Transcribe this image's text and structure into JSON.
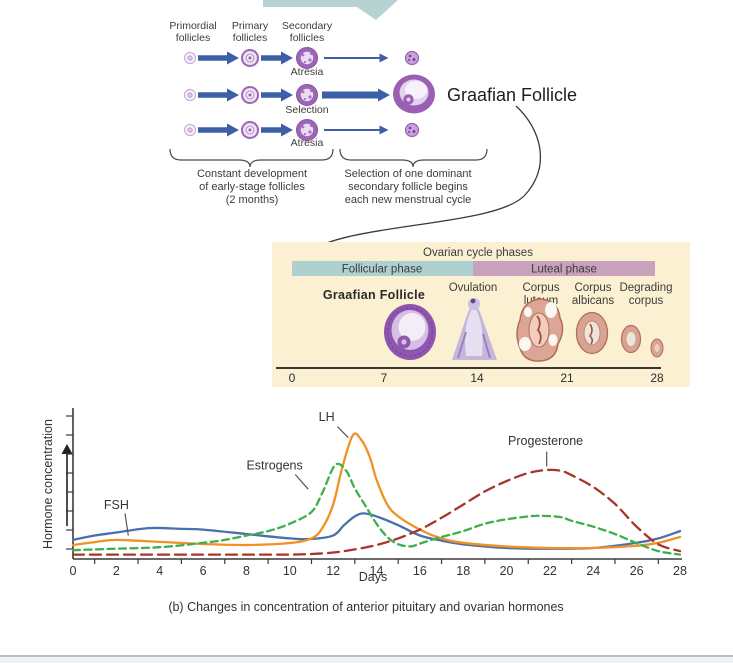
{
  "figure": {
    "graafian_label": "Graafian Follicle",
    "caption": "(b) Changes in concentration of anterior pituitary and ovarian hormones"
  },
  "diagram": {
    "columns": [
      [
        "Primordial",
        "follicles"
      ],
      [
        "Primary",
        "follicles"
      ],
      [
        "Secondary",
        "follicles"
      ]
    ],
    "row_labels": [
      "Atresia",
      "Selection",
      "Atresia"
    ],
    "left_caption": [
      "Constant development",
      "of early-stage follicles",
      "(2 months)"
    ],
    "right_caption": [
      "Selection of one dominant",
      "secondary follicle begins",
      "each new menstrual cycle"
    ],
    "arrow_color": "#3d5fa5",
    "top_flow_arrow_color": "#b6d2d2"
  },
  "cycle_box": {
    "title": "Ovarian cycle phases",
    "phases": [
      {
        "label": "Follicular phase",
        "color": "#aed0d1"
      },
      {
        "label": "Luteal phase",
        "color": "#c8a2bc"
      }
    ],
    "stages": {
      "graafian": "Graafian Follicle",
      "ovulation": "Ovulation",
      "corpus_luteum": [
        "Corpus",
        "luteum"
      ],
      "corpus_albicans": [
        "Corpus",
        "albicans"
      ],
      "degrading_corpus": [
        "Degrading",
        "corpus"
      ]
    },
    "timeline_days": [
      "0",
      "7",
      "14",
      "21",
      "28"
    ],
    "box_color": "#fbf0d2"
  },
  "chart_data": {
    "type": "line",
    "title": "",
    "xlabel": "Days",
    "ylabel": "Hormone concentration",
    "x_range": [
      0,
      28
    ],
    "ylim": [
      0,
      100
    ],
    "x_ticks": [
      0,
      2,
      4,
      6,
      8,
      10,
      12,
      14,
      16,
      18,
      20,
      22,
      24,
      26,
      28
    ],
    "y_axis_note": "unlabeled relative-concentration ticks",
    "legend_position": "inline-annotations",
    "grid": false,
    "series": [
      {
        "name": "FSH",
        "color": "#4a6fae",
        "style": "solid",
        "x": [
          0,
          1,
          2,
          3.5,
          5,
          6,
          8,
          10,
          11,
          12,
          12.5,
          13,
          13.4,
          14,
          15,
          16,
          17,
          18,
          20,
          22,
          24,
          26,
          27,
          28
        ],
        "y": [
          13,
          16,
          18,
          21,
          20.5,
          20,
          17,
          14,
          13.6,
          16,
          23,
          29,
          31,
          29,
          23,
          16,
          12.5,
          10,
          7.5,
          7,
          7.5,
          11,
          14,
          19
        ]
      },
      {
        "name": "LH",
        "color": "#f19123",
        "style": "solid",
        "x": [
          0,
          1,
          2,
          4,
          6,
          8,
          10,
          11,
          11.5,
          12,
          12.4,
          12.9,
          13.3,
          13.7,
          14,
          14.5,
          15,
          16,
          17,
          18,
          20,
          22,
          24,
          26,
          27,
          28
        ],
        "y": [
          9.5,
          11.5,
          13,
          11.6,
          10.2,
          9.5,
          10.9,
          14,
          21,
          37,
          61,
          84,
          81,
          69,
          54,
          37,
          29,
          20,
          14,
          11,
          8.5,
          7.5,
          7.5,
          9,
          11,
          15
        ]
      },
      {
        "name": "Estrogens",
        "color": "#3fae4c",
        "style": "dashed",
        "x": [
          0,
          2,
          4,
          6,
          7,
          8,
          9,
          10,
          11,
          11.5,
          12.1,
          12.6,
          13,
          13.5,
          14,
          14.5,
          15,
          15.6,
          16,
          17,
          18,
          19,
          20,
          21,
          21.6,
          22.5,
          23,
          24,
          25,
          26,
          27,
          28
        ],
        "y": [
          6,
          7,
          8,
          11,
          13,
          16,
          19,
          24,
          32,
          45,
          64,
          60,
          48,
          36,
          24,
          15,
          10,
          8.6,
          10.5,
          15,
          19,
          24,
          27,
          29,
          29.4,
          28.5,
          26,
          22,
          17,
          10.8,
          5.4,
          3
        ]
      },
      {
        "name": "Progesterone",
        "color": "#a93428",
        "style": "long-dashed",
        "x": [
          0,
          2,
          4,
          6,
          8,
          10,
          11,
          12,
          13,
          14,
          15,
          16,
          17,
          18,
          19,
          20,
          21,
          21.8,
          22.5,
          23,
          24,
          25,
          26,
          27,
          28
        ],
        "y": [
          3,
          3,
          3,
          3,
          3,
          3,
          3.4,
          4.4,
          6.5,
          9.5,
          14,
          20,
          28,
          37,
          46,
          53,
          58.5,
          60.5,
          60,
          57,
          49,
          37.5,
          22,
          10,
          5.4
        ]
      }
    ],
    "annotations": [
      {
        "text": "FSH",
        "label_day": 2.0,
        "label_value": 34,
        "pointer": [
          [
            2.4,
            31
          ],
          [
            2.55,
            16
          ]
        ]
      },
      {
        "text": "Estrogens",
        "label_day": 9.3,
        "label_value": 61,
        "pointer": [
          [
            10.25,
            57.5
          ],
          [
            10.85,
            47.5
          ]
        ]
      },
      {
        "text": "LH",
        "label_day": 11.7,
        "label_value": 94,
        "pointer": [
          [
            12.2,
            90
          ],
          [
            12.7,
            82.5
          ]
        ]
      },
      {
        "text": "Progesterone",
        "label_day": 21.8,
        "label_value": 77.5,
        "pointer": [
          [
            21.85,
            73
          ],
          [
            21.85,
            63
          ]
        ]
      }
    ]
  }
}
